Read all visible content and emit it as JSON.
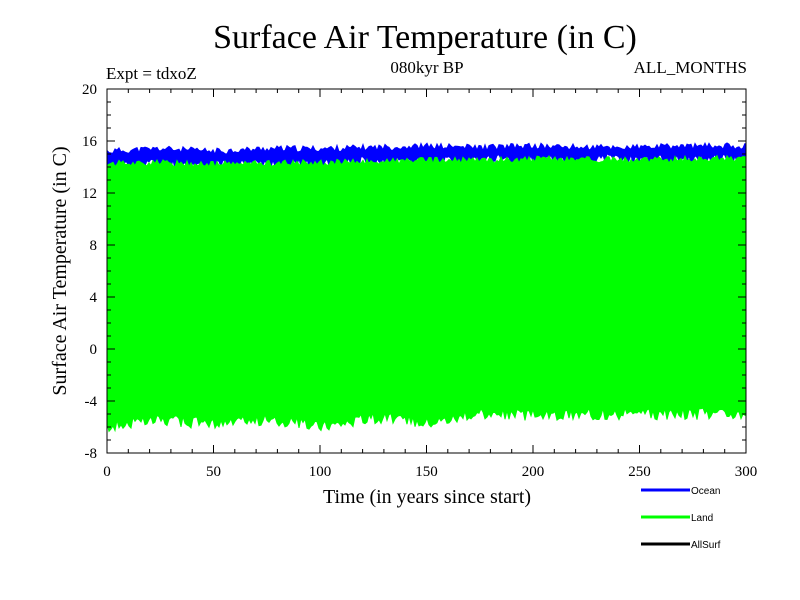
{
  "chart_data": {
    "type": "area",
    "title": "Surface Air Temperature (in C)",
    "left_label": "Expt = tdxoZ",
    "subtitle": "080kyr BP",
    "right_label": "ALL_MONTHS",
    "xlabel": "Time (in years since start)",
    "ylabel": "Surface Air Temperature (in C)",
    "xlim": [
      0,
      300
    ],
    "ylim": [
      -8,
      20
    ],
    "x_ticks": [
      0,
      50,
      100,
      150,
      200,
      250,
      300
    ],
    "y_ticks": [
      -8,
      -4,
      0,
      4,
      8,
      12,
      16,
      20
    ],
    "grid": false,
    "legend_position": "bottom-right",
    "series": [
      {
        "name": "Ocean",
        "color": "#0000ff",
        "x": [
          0,
          25,
          50,
          75,
          100,
          125,
          150,
          175,
          200,
          225,
          250,
          275,
          300
        ],
        "min": [
          14.0,
          14.3,
          14.1,
          14.3,
          14.2,
          14.4,
          14.4,
          14.5,
          14.5,
          14.6,
          14.6,
          14.6,
          14.6
        ],
        "max": [
          15.2,
          15.4,
          15.2,
          15.4,
          15.4,
          15.5,
          15.6,
          15.5,
          15.6,
          15.5,
          15.5,
          15.6,
          15.6
        ]
      },
      {
        "name": "Land",
        "color": "#00ff00",
        "x": [
          0,
          25,
          50,
          75,
          100,
          125,
          150,
          175,
          200,
          225,
          250,
          275,
          300
        ],
        "min": [
          -6.0,
          -5.4,
          -5.8,
          -5.4,
          -5.9,
          -5.3,
          -5.6,
          -5.0,
          -5.1,
          -5.0,
          -5.0,
          -5.0,
          -4.9
        ],
        "max": [
          14.3,
          14.3,
          14.2,
          14.3,
          14.3,
          14.4,
          14.5,
          14.5,
          14.6,
          14.6,
          14.5,
          14.6,
          14.7
        ]
      },
      {
        "name": "AllSurf",
        "color": "#000000",
        "x": [],
        "min": [],
        "max": []
      }
    ]
  }
}
